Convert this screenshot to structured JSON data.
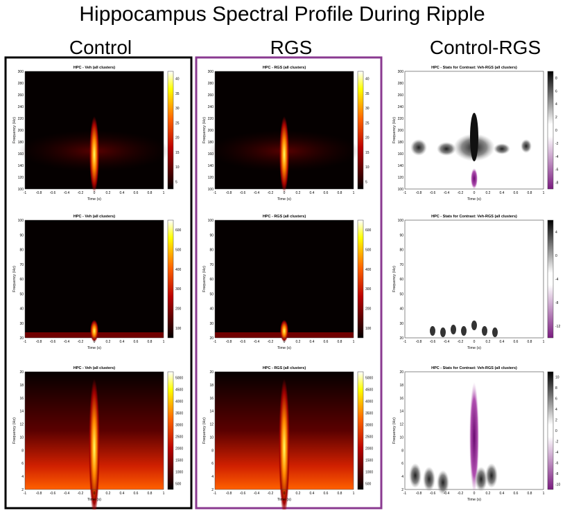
{
  "title": "Hippocampus Spectral Profile During Ripple",
  "columns": [
    {
      "heading": "Control",
      "panels": [
        {
          "title": "HPC - Veh (all clusters)",
          "ylabel": "Frequency (Hz)",
          "xlabel": "Time (s)",
          "yticks": [
            100,
            120,
            140,
            160,
            180,
            200,
            220,
            240,
            260,
            280,
            300
          ],
          "xticks": [
            -1,
            -0.8,
            -0.6,
            -0.4,
            -0.2,
            0,
            0.2,
            0.4,
            0.6,
            0.8,
            1
          ],
          "colorbar_ticks": [
            5,
            10,
            15,
            20,
            25,
            30,
            35,
            40
          ]
        },
        {
          "title": "HPC - Veh (all clusters)",
          "ylabel": "Frequency (Hz)",
          "xlabel": "Time (s)",
          "yticks": [
            20,
            30,
            40,
            50,
            60,
            70,
            80,
            90,
            100
          ],
          "xticks": [
            -1,
            -0.8,
            -0.6,
            -0.4,
            -0.2,
            0,
            0.2,
            0.4,
            0.6,
            0.8,
            1
          ],
          "colorbar_ticks": [
            100,
            200,
            300,
            400,
            500,
            600
          ]
        },
        {
          "title": "HPC - Veh (all clusters)",
          "ylabel": "Frequency (Hz)",
          "xlabel": "Time (s)",
          "yticks": [
            2,
            4,
            6,
            8,
            10,
            12,
            14,
            16,
            18,
            20
          ],
          "xticks": [
            -1,
            -0.8,
            -0.6,
            -0.4,
            -0.2,
            0,
            0.2,
            0.4,
            0.6,
            0.8,
            1
          ],
          "colorbar_ticks": [
            500,
            1000,
            1500,
            2000,
            2500,
            3000,
            3500,
            4000,
            4500,
            5000
          ]
        }
      ]
    },
    {
      "heading": "RGS",
      "panels": [
        {
          "title": "HPC - RGS (all clusters)",
          "ylabel": "Frequency (Hz)",
          "xlabel": "Time (s)",
          "yticks": [
            100,
            120,
            140,
            160,
            180,
            200,
            220,
            240,
            260,
            280,
            300
          ],
          "xticks": [
            -1,
            -0.8,
            -0.6,
            -0.4,
            -0.2,
            0,
            0.2,
            0.4,
            0.6,
            0.8,
            1
          ],
          "colorbar_ticks": [
            5,
            10,
            15,
            20,
            25,
            30,
            35,
            40
          ]
        },
        {
          "title": "HPC - RGS (all clusters)",
          "ylabel": "Frequency (Hz)",
          "xlabel": "Time (s)",
          "yticks": [
            20,
            30,
            40,
            50,
            60,
            70,
            80,
            90,
            100
          ],
          "xticks": [
            -1,
            -0.8,
            -0.6,
            -0.4,
            -0.2,
            0,
            0.2,
            0.4,
            0.6,
            0.8,
            1
          ],
          "colorbar_ticks": [
            100,
            200,
            300,
            400,
            500,
            600
          ]
        },
        {
          "title": "HPC - RGS (all clusters)",
          "ylabel": "Frequency (Hz)",
          "xlabel": "Time (s)",
          "yticks": [
            2,
            4,
            6,
            8,
            10,
            12,
            14,
            16,
            18,
            20
          ],
          "xticks": [
            -1,
            -0.8,
            -0.6,
            -0.4,
            -0.2,
            0,
            0.2,
            0.4,
            0.6,
            0.8,
            1
          ],
          "colorbar_ticks": [
            500,
            1000,
            1500,
            2000,
            2500,
            3000,
            3500,
            4000,
            4500,
            5000
          ]
        }
      ]
    },
    {
      "heading": "Control-RGS",
      "panels": [
        {
          "title": "HPC - Stats for Contrast: Veh-RGS (all clusters)",
          "ylabel": "Frequency (Hz)",
          "xlabel": "Time (s)",
          "yticks": [
            100,
            120,
            140,
            160,
            180,
            200,
            220,
            240,
            260,
            280,
            300
          ],
          "xticks": [
            -1,
            -0.8,
            -0.6,
            -0.4,
            -0.2,
            0,
            0.2,
            0.4,
            0.6,
            0.8,
            1
          ],
          "colorbar_ticks": [
            -8,
            -6,
            -4,
            -2,
            0,
            2,
            4,
            6,
            8
          ]
        },
        {
          "title": "HPC - Stats for Contrast: Veh-RGS (all clusters)",
          "ylabel": "Frequency (Hz)",
          "xlabel": "Time (s)",
          "yticks": [
            20,
            30,
            40,
            50,
            60,
            70,
            80,
            90,
            100
          ],
          "xticks": [
            -1,
            -0.8,
            -0.6,
            -0.4,
            -0.2,
            0,
            0.2,
            0.4,
            0.6,
            0.8,
            1
          ],
          "colorbar_ticks": [
            -12,
            -8,
            -4,
            0,
            4
          ]
        },
        {
          "title": "HPC - Stats for Contrast: Veh-RGS (all clusters)",
          "ylabel": "Frequency (Hz)",
          "xlabel": "Time (s)",
          "yticks": [
            2,
            4,
            6,
            8,
            10,
            12,
            14,
            16,
            18,
            20
          ],
          "xticks": [
            -1,
            -0.8,
            -0.6,
            -0.4,
            -0.2,
            0,
            0.2,
            0.4,
            0.6,
            0.8,
            1
          ],
          "colorbar_ticks": [
            -10,
            -8,
            -6,
            -4,
            -2,
            0,
            2,
            4,
            6,
            8,
            10
          ]
        }
      ]
    }
  ]
}
